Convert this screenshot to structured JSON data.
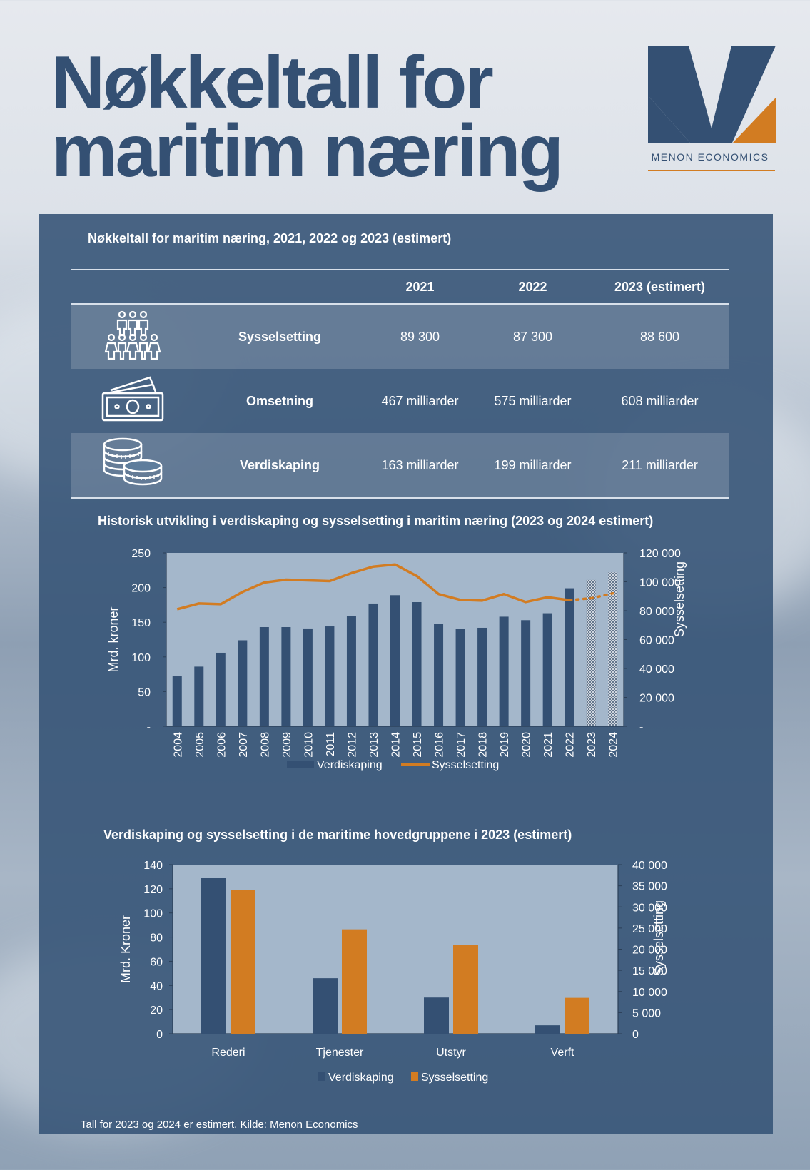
{
  "page": {
    "title_line1": "Nøkkeltall for",
    "title_line2": "maritim næring",
    "logo_text": "MENON ECONOMICS",
    "colors": {
      "navy": "#345073",
      "orange": "#d27c22"
    }
  },
  "table": {
    "title": "Nøkkeltall for maritim næring, 2021, 2022 og 2023 (estimert)",
    "headers": [
      "2021",
      "2022",
      "2023 (estimert)"
    ],
    "rows": [
      {
        "icon": "people-icon",
        "label": "Sysselsetting",
        "values": [
          "89 300",
          "87 300",
          "88 600"
        ]
      },
      {
        "icon": "money-icon",
        "label": "Omsetning",
        "values": [
          "467 milliarder",
          "575 milliarder",
          "608 milliarder"
        ]
      },
      {
        "icon": "coins-icon",
        "label": "Verdiskaping",
        "values": [
          "163 milliarder",
          "199 milliarder",
          "211 milliarder"
        ]
      }
    ]
  },
  "footnote": "Tall for 2023 og 2024 er estimert. Kilde: Menon Economics",
  "chart_data": [
    {
      "type": "bar",
      "title": "Historisk utvikling i verdiskaping og sysselsetting i maritim næring (2023 og 2024 estimert)",
      "categories": [
        "2004",
        "2005",
        "2006",
        "2007",
        "2008",
        "2009",
        "2010",
        "2011",
        "2012",
        "2013",
        "2014",
        "2015",
        "2016",
        "2017",
        "2018",
        "2019",
        "2020",
        "2021",
        "2022",
        "2023",
        "2024"
      ],
      "series": [
        {
          "name": "Verdiskaping",
          "type": "bar",
          "axis": "left",
          "values": [
            72,
            86,
            106,
            124,
            143,
            143,
            141,
            144,
            159,
            177,
            189,
            179,
            148,
            140,
            142,
            158,
            153,
            163,
            199,
            211,
            222
          ],
          "estimated_from_index": 19
        },
        {
          "name": "Sysselsetting",
          "type": "line",
          "axis": "right",
          "values": [
            81000,
            85000,
            84500,
            93000,
            99500,
            101500,
            101000,
            100500,
            106000,
            110500,
            112000,
            104000,
            91500,
            87500,
            87000,
            91500,
            86000,
            89300,
            87300,
            88600,
            92000
          ],
          "estimated_from_index": 19
        }
      ],
      "ylabel": "Mrd. kroner",
      "y2label": "Sysselsetting",
      "ylim": [
        0,
        250
      ],
      "yticks": [
        0,
        50,
        100,
        150,
        200,
        250
      ],
      "ytick_labels": [
        "-",
        "50",
        "100",
        "150",
        "200",
        "250"
      ],
      "y2lim": [
        0,
        120000
      ],
      "y2ticks": [
        0,
        20000,
        40000,
        60000,
        80000,
        100000,
        120000
      ],
      "y2tick_labels": [
        "-",
        "20 000",
        "40 000",
        "60 000",
        "80 000",
        "100 000",
        "120 000"
      ],
      "legend": [
        "Verdiskaping",
        "Sysselsetting"
      ]
    },
    {
      "type": "bar",
      "title": "Verdiskaping og sysselsetting i de maritime hovedgruppene i 2023 (estimert)",
      "categories": [
        "Rederi",
        "Tjenester",
        "Utstyr",
        "Verft"
      ],
      "series": [
        {
          "name": "Verdiskaping",
          "axis": "left",
          "values": [
            129,
            46,
            30,
            7
          ]
        },
        {
          "name": "Sysselsetting",
          "axis": "right",
          "values": [
            34000,
            24700,
            21000,
            8500
          ]
        }
      ],
      "ylabel": "Mrd. Kroner",
      "y2label": "Sysselsetting",
      "ylim": [
        0,
        140
      ],
      "yticks": [
        0,
        20,
        40,
        60,
        80,
        100,
        120,
        140
      ],
      "ytick_labels": [
        "0",
        "20",
        "40",
        "60",
        "80",
        "100",
        "120",
        "140"
      ],
      "y2lim": [
        0,
        40000
      ],
      "y2ticks": [
        0,
        5000,
        10000,
        15000,
        20000,
        25000,
        30000,
        35000,
        40000
      ],
      "y2tick_labels": [
        "0",
        "5 000",
        "10 000",
        "15 000",
        "20 000",
        "25 000",
        "30 000",
        "35 000",
        "40 000"
      ],
      "legend": [
        "Verdiskaping",
        "Sysselsetting"
      ]
    }
  ]
}
